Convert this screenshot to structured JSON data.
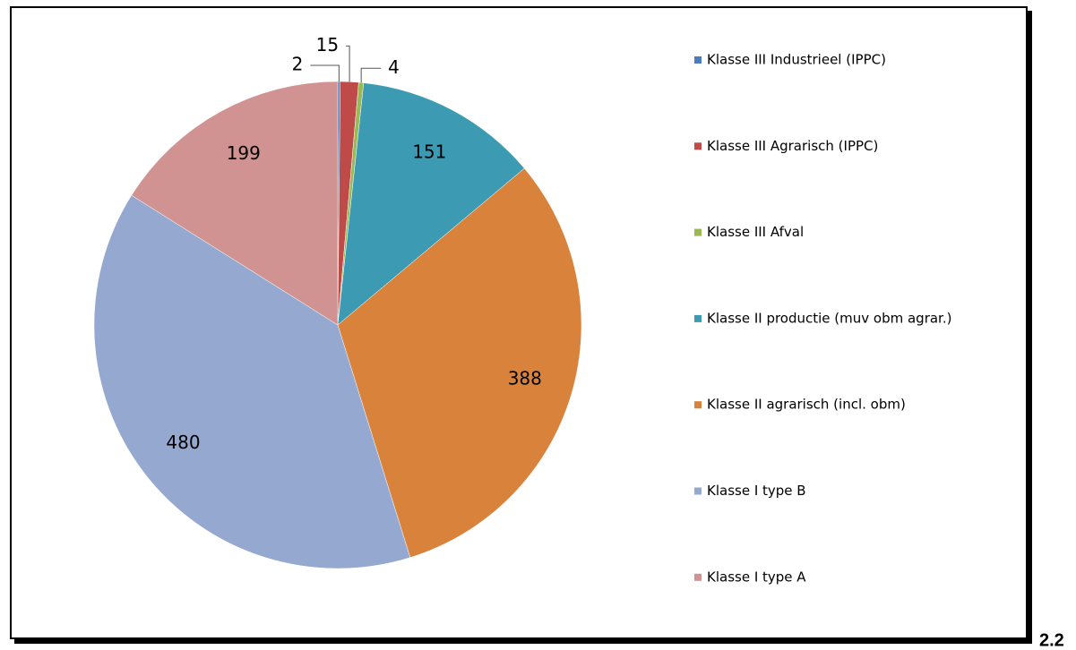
{
  "chart_data": {
    "type": "pie",
    "categories": [
      "Klasse III Industrieel (IPPC)",
      "Klasse III Agrarisch (IPPC)",
      "Klasse III Afval",
      "Klasse II productie (muv obm agrar.)",
      "Klasse II agrarisch (incl. obm)",
      "Klasse I type B",
      "Klasse I type A"
    ],
    "values": [
      2,
      15,
      4,
      151,
      388,
      480,
      199
    ],
    "colors": [
      "#4a7ebb",
      "#be4b48",
      "#98b954",
      "#3d9ab3",
      "#d8823b",
      "#94a8d0",
      "#d09392"
    ],
    "legend": "right"
  },
  "section_number": "2.2"
}
